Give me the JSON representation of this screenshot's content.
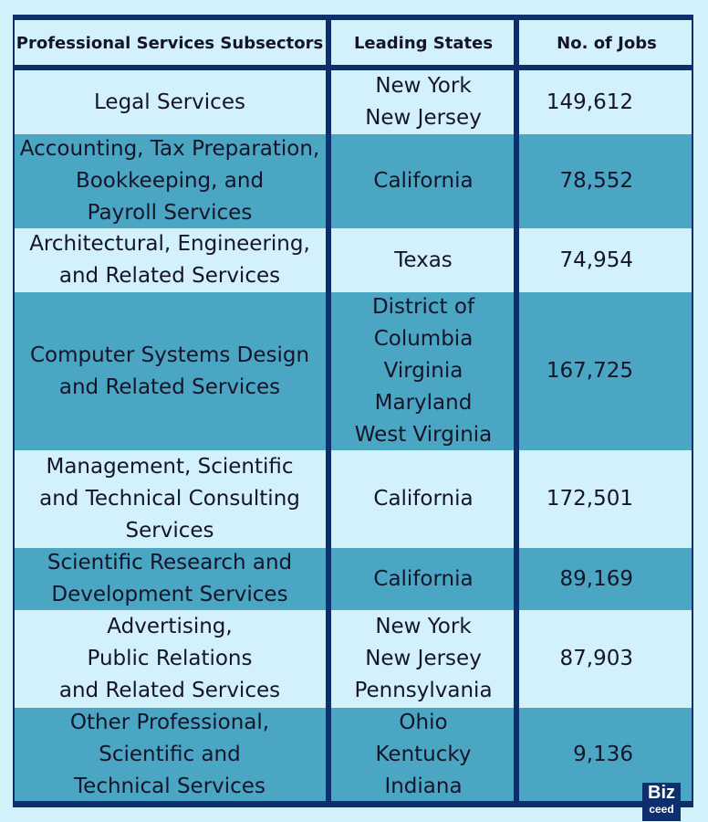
{
  "header": {
    "columns": [
      "Professional Services Subsectors",
      "Leading States",
      "No. of Jobs"
    ]
  },
  "table": {
    "rows": [
      [
        [
          "Legal Services"
        ],
        [
          "New York",
          "New Jersey"
        ],
        "149,612"
      ],
      [
        [
          "Accounting, Tax Preparation,",
          "Bookkeeping, and",
          "Payroll Services"
        ],
        [
          "California"
        ],
        "78,552"
      ],
      [
        [
          "Architectural, Engineering,",
          "and Related Services"
        ],
        [
          "Texas"
        ],
        "74,954"
      ],
      [
        [
          "Computer Systems Design",
          "and Related Services"
        ],
        [
          "District of",
          "Columbia",
          "Virginia",
          "Maryland",
          "West Virginia"
        ],
        "167,725"
      ],
      [
        [
          "Management, Scientific",
          "and Technical Consulting",
          "Services"
        ],
        [
          "California"
        ],
        "172,501"
      ],
      [
        [
          "Scientific Research and",
          "Development Services"
        ],
        [
          "California"
        ],
        "89,169"
      ],
      [
        [
          "Advertising,",
          "Public Relations",
          "and Related Services"
        ],
        [
          "New York",
          "New Jersey",
          "Pennsylvania"
        ],
        "87,903"
      ],
      [
        [
          "Other Professional,",
          "Scientific and",
          "Technical Services"
        ],
        [
          "Ohio",
          "Kentucky",
          "Indiana"
        ],
        "9,136"
      ]
    ]
  },
  "logo": {
    "top": "Biz",
    "bottom": "ceed"
  }
}
